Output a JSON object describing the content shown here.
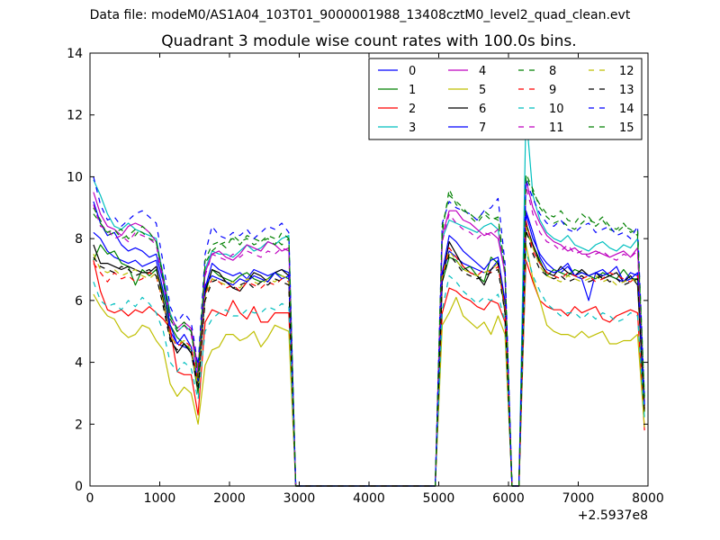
{
  "figure": {
    "suptitle": "Data file: modeM0/AS1A04_103T01_9000001988_13408cztM0_level2_quad_clean.evt"
  },
  "chart_data": {
    "type": "line",
    "title": "Quadrant 3 module wise count rates with 100.0s bins.",
    "xlabel": "",
    "ylabel": "",
    "xlim": [
      0,
      8000
    ],
    "ylim": [
      0,
      14
    ],
    "x_offset_label": "+2.5937e8",
    "xticks": [
      0,
      1000,
      2000,
      3000,
      4000,
      5000,
      6000,
      7000,
      8000
    ],
    "xtick_labels": [
      "0",
      "1000",
      "2000",
      "3000",
      "4000",
      "5000",
      "6000",
      "7000",
      "8000"
    ],
    "yticks": [
      0,
      2,
      4,
      6,
      8,
      10,
      12,
      14
    ],
    "ytick_labels": [
      "0",
      "2",
      "4",
      "6",
      "8",
      "10",
      "12",
      "14"
    ],
    "grid": false,
    "legend": {
      "placement": "top-right",
      "columns": 4
    },
    "x": [
      50,
      150,
      250,
      350,
      450,
      550,
      650,
      750,
      850,
      950,
      1050,
      1150,
      1250,
      1350,
      1450,
      1550,
      1650,
      1750,
      1850,
      1950,
      2050,
      2150,
      2250,
      2350,
      2450,
      2550,
      2650,
      2750,
      2850,
      2950,
      3050,
      4950,
      5050,
      5150,
      5250,
      5350,
      5450,
      5550,
      5650,
      5750,
      5850,
      5950,
      6050,
      6150,
      6250,
      6350,
      6450,
      6550,
      6650,
      6750,
      6850,
      6950,
      7050,
      7150,
      7250,
      7350,
      7450,
      7550,
      7650,
      7750,
      7850,
      7950
    ],
    "series": [
      {
        "name": "0",
        "color": "#0000ff",
        "dash": "solid",
        "values": [
          8.2,
          8.0,
          7.6,
          7.4,
          7.3,
          7.2,
          7.3,
          7.1,
          7.2,
          7.3,
          6.3,
          5.0,
          4.6,
          4.5,
          4.4,
          3.3,
          6.4,
          7.2,
          7.0,
          6.9,
          6.8,
          6.9,
          6.7,
          7.0,
          6.9,
          6.8,
          6.9,
          7.0,
          6.9,
          0,
          0,
          0,
          6.8,
          7.6,
          7.4,
          7.2,
          7.1,
          7.0,
          6.9,
          7.0,
          7.3,
          5.8,
          0,
          0,
          8.8,
          8.0,
          7.5,
          7.2,
          7.0,
          6.9,
          7.1,
          6.8,
          6.7,
          6.0,
          6.9,
          7.0,
          6.8,
          6.7,
          6.6,
          6.9,
          6.8,
          2.6
        ]
      },
      {
        "name": "1",
        "color": "#008000",
        "dash": "solid",
        "values": [
          7.3,
          7.8,
          7.5,
          7.6,
          7.2,
          7.1,
          6.5,
          7.0,
          6.8,
          7.0,
          6.2,
          5.2,
          4.8,
          4.6,
          4.4,
          3.0,
          6.2,
          7.0,
          6.8,
          6.7,
          6.6,
          6.8,
          6.9,
          6.7,
          6.6,
          6.7,
          6.9,
          6.8,
          6.7,
          0,
          0,
          0,
          6.6,
          7.4,
          7.3,
          7.0,
          7.1,
          6.8,
          6.6,
          7.4,
          7.2,
          5.6,
          0,
          0,
          8.2,
          7.8,
          7.3,
          6.8,
          7.0,
          6.9,
          6.8,
          7.0,
          6.9,
          6.8,
          6.7,
          6.9,
          6.8,
          6.7,
          7.0,
          6.7,
          6.7,
          2.4
        ]
      },
      {
        "name": "2",
        "color": "#ff0000",
        "dash": "solid",
        "values": [
          7.3,
          6.3,
          5.7,
          5.6,
          5.7,
          5.5,
          5.7,
          5.6,
          5.8,
          5.6,
          5.4,
          5.1,
          3.7,
          3.6,
          3.6,
          2.3,
          5.3,
          5.7,
          5.6,
          5.5,
          6.0,
          5.6,
          5.4,
          5.8,
          5.3,
          5.3,
          5.6,
          5.6,
          5.6,
          0,
          0,
          0,
          5.6,
          6.4,
          6.3,
          6.1,
          6.0,
          5.8,
          5.7,
          6.0,
          5.9,
          5.3,
          0,
          0,
          7.3,
          6.6,
          6.0,
          5.8,
          5.7,
          5.7,
          5.5,
          5.8,
          5.6,
          5.7,
          5.8,
          5.4,
          5.3,
          5.5,
          5.6,
          5.7,
          5.6,
          1.8
        ]
      },
      {
        "name": "3",
        "color": "#00bfbf",
        "dash": "solid",
        "values": [
          9.9,
          9.4,
          8.8,
          8.4,
          8.3,
          8.5,
          8.3,
          8.2,
          8.1,
          8.0,
          6.8,
          5.6,
          5.0,
          5.2,
          5.0,
          3.7,
          7.0,
          7.6,
          7.5,
          7.5,
          7.4,
          7.6,
          7.8,
          7.6,
          7.7,
          7.9,
          7.8,
          8.0,
          8.1,
          0,
          0,
          0,
          8.0,
          8.6,
          8.5,
          8.4,
          8.3,
          8.2,
          8.4,
          8.5,
          8.3,
          6.8,
          0,
          0,
          12.1,
          9.4,
          8.6,
          8.2,
          8.0,
          7.9,
          8.1,
          7.8,
          7.7,
          7.6,
          7.8,
          7.9,
          7.7,
          7.6,
          7.8,
          7.7,
          8.0,
          2.6
        ]
      },
      {
        "name": "4",
        "color": "#bf00bf",
        "dash": "solid",
        "values": [
          9.5,
          8.8,
          8.4,
          8.3,
          8.1,
          8.4,
          8.5,
          8.4,
          8.2,
          7.9,
          6.7,
          5.5,
          5.1,
          5.3,
          5.1,
          3.8,
          6.9,
          7.5,
          7.6,
          7.4,
          7.3,
          7.5,
          7.8,
          7.7,
          7.6,
          7.9,
          7.8,
          7.6,
          7.7,
          0,
          0,
          0,
          8.1,
          8.9,
          8.9,
          8.6,
          8.5,
          8.3,
          8.1,
          8.2,
          8.0,
          6.9,
          0,
          0,
          9.9,
          9.0,
          8.5,
          8.1,
          7.9,
          7.8,
          7.6,
          7.7,
          7.5,
          7.5,
          7.6,
          7.5,
          7.4,
          7.5,
          7.6,
          7.4,
          7.7,
          2.7
        ]
      },
      {
        "name": "5",
        "color": "#bfbf00",
        "dash": "solid",
        "values": [
          6.2,
          5.8,
          5.5,
          5.4,
          5.0,
          4.8,
          4.9,
          5.2,
          5.1,
          4.7,
          4.4,
          3.3,
          2.9,
          3.2,
          3.0,
          2.0,
          3.9,
          4.4,
          4.5,
          4.9,
          4.9,
          4.7,
          4.8,
          5.0,
          4.5,
          4.8,
          5.2,
          5.1,
          5.0,
          0,
          0,
          0,
          5.2,
          5.6,
          6.1,
          5.5,
          5.3,
          5.1,
          5.3,
          4.9,
          5.5,
          4.9,
          0,
          0,
          7.8,
          6.7,
          6.0,
          5.2,
          5.0,
          4.9,
          4.9,
          4.8,
          5.0,
          4.8,
          4.9,
          5.0,
          4.6,
          4.6,
          4.7,
          4.7,
          4.9,
          1.9
        ]
      },
      {
        "name": "6",
        "color": "#000000",
        "dash": "solid",
        "values": [
          7.8,
          7.2,
          7.2,
          7.1,
          7.0,
          7.1,
          7.0,
          6.9,
          6.9,
          7.1,
          6.0,
          4.8,
          4.3,
          4.6,
          4.3,
          3.3,
          6.3,
          7.0,
          6.9,
          6.6,
          6.4,
          6.3,
          6.6,
          6.9,
          6.8,
          6.6,
          6.9,
          7.0,
          6.8,
          0,
          0,
          0,
          6.7,
          7.9,
          7.5,
          7.1,
          6.9,
          6.8,
          6.5,
          7.0,
          7.2,
          5.9,
          0,
          0,
          8.5,
          7.8,
          7.2,
          6.9,
          6.8,
          7.1,
          6.9,
          6.8,
          7.0,
          6.8,
          6.9,
          6.7,
          6.8,
          6.9,
          6.6,
          6.8,
          6.5,
          2.5
        ]
      },
      {
        "name": "7",
        "color": "#0000ff",
        "dash": "solid",
        "values": [
          9.2,
          8.5,
          8.1,
          8.2,
          7.8,
          7.6,
          7.7,
          7.6,
          7.4,
          7.5,
          6.6,
          5.2,
          4.6,
          4.9,
          4.5,
          3.4,
          6.5,
          6.8,
          6.7,
          6.6,
          6.5,
          6.7,
          6.6,
          6.8,
          6.7,
          6.6,
          6.9,
          6.7,
          6.8,
          0,
          0,
          0,
          6.9,
          8.1,
          7.9,
          7.6,
          7.4,
          7.2,
          7.0,
          7.3,
          7.4,
          6.0,
          0,
          0,
          8.9,
          8.2,
          7.4,
          7.0,
          6.9,
          7.0,
          7.2,
          6.8,
          6.9,
          6.8,
          6.9,
          6.8,
          6.9,
          7.1,
          6.6,
          6.7,
          6.9,
          2.6
        ]
      },
      {
        "name": "8",
        "color": "#008000",
        "dash": "dashed",
        "values": [
          9.0,
          8.6,
          8.1,
          8.2,
          8.3,
          8.0,
          8.1,
          8.4,
          8.2,
          7.9,
          6.7,
          5.5,
          5.1,
          5.3,
          5.0,
          3.6,
          7.2,
          7.6,
          7.8,
          7.9,
          8.0,
          7.8,
          8.1,
          8.0,
          7.9,
          8.0,
          7.8,
          8.2,
          8.0,
          0,
          0,
          0,
          8.2,
          9.6,
          9.1,
          8.9,
          8.8,
          8.6,
          8.9,
          8.7,
          8.6,
          7.0,
          0,
          0,
          10.1,
          9.6,
          9.0,
          8.7,
          8.5,
          8.6,
          8.4,
          8.3,
          8.5,
          8.7,
          8.4,
          8.6,
          8.3,
          8.2,
          8.4,
          8.3,
          8.1,
          2.9
        ]
      },
      {
        "name": "9",
        "color": "#ff0000",
        "dash": "dashed",
        "values": [
          7.2,
          6.9,
          6.6,
          6.9,
          6.7,
          6.8,
          6.6,
          6.7,
          6.9,
          6.8,
          5.9,
          4.9,
          4.5,
          4.7,
          4.5,
          3.4,
          6.2,
          6.7,
          6.6,
          6.4,
          6.5,
          6.3,
          6.6,
          6.5,
          6.4,
          6.6,
          6.5,
          6.7,
          6.6,
          0,
          0,
          0,
          6.8,
          7.7,
          7.4,
          7.1,
          6.9,
          6.8,
          7.0,
          6.9,
          7.1,
          5.8,
          0,
          0,
          8.6,
          7.6,
          7.2,
          6.9,
          6.8,
          6.7,
          6.9,
          6.8,
          6.7,
          6.8,
          6.6,
          6.7,
          6.9,
          6.8,
          6.7,
          6.6,
          6.8,
          2.5
        ]
      },
      {
        "name": "10",
        "color": "#00bfbf",
        "dash": "dashed",
        "values": [
          6.6,
          6.0,
          5.8,
          5.9,
          5.7,
          6.0,
          5.8,
          6.1,
          5.9,
          5.6,
          5.0,
          4.0,
          3.7,
          4.0,
          3.8,
          2.8,
          5.0,
          5.4,
          5.6,
          5.7,
          5.5,
          5.5,
          5.7,
          5.6,
          5.6,
          5.8,
          5.7,
          5.9,
          5.8,
          0,
          0,
          0,
          5.7,
          6.8,
          6.6,
          6.3,
          6.1,
          5.9,
          6.1,
          6.0,
          6.2,
          5.3,
          0,
          0,
          7.6,
          6.8,
          6.3,
          5.9,
          5.7,
          5.5,
          5.6,
          5.6,
          5.4,
          5.6,
          5.4,
          5.6,
          5.5,
          5.3,
          5.4,
          5.6,
          5.5,
          2.2
        ]
      },
      {
        "name": "11",
        "color": "#bf00bf",
        "dash": "dashed",
        "values": [
          9.1,
          8.4,
          8.3,
          8.0,
          8.1,
          7.9,
          8.2,
          8.1,
          8.0,
          7.8,
          6.6,
          5.4,
          5.0,
          5.2,
          4.9,
          3.6,
          6.8,
          7.5,
          7.4,
          7.3,
          7.5,
          7.4,
          7.6,
          7.5,
          7.4,
          7.6,
          7.5,
          7.7,
          7.6,
          0,
          0,
          0,
          7.9,
          8.8,
          8.5,
          8.3,
          8.2,
          8.0,
          8.2,
          8.1,
          8.3,
          6.8,
          0,
          0,
          9.7,
          8.8,
          8.2,
          7.9,
          7.8,
          7.6,
          7.8,
          7.5,
          7.6,
          7.4,
          7.5,
          7.6,
          7.4,
          7.3,
          7.5,
          7.4,
          7.6,
          2.6
        ]
      },
      {
        "name": "12",
        "color": "#bfbf00",
        "dash": "dashed",
        "values": [
          7.5,
          7.0,
          6.9,
          7.0,
          6.8,
          6.9,
          7.0,
          6.8,
          6.7,
          6.9,
          5.9,
          4.8,
          4.6,
          4.7,
          4.4,
          3.2,
          6.1,
          6.7,
          6.6,
          6.5,
          6.6,
          6.4,
          6.7,
          6.6,
          6.5,
          6.7,
          6.6,
          6.8,
          6.7,
          0,
          0,
          0,
          6.7,
          7.6,
          7.3,
          7.0,
          6.9,
          6.8,
          6.9,
          7.0,
          7.2,
          5.7,
          0,
          0,
          8.4,
          7.7,
          7.1,
          6.8,
          6.7,
          6.6,
          6.8,
          6.7,
          6.6,
          6.7,
          6.8,
          6.6,
          6.7,
          6.5,
          6.6,
          6.7,
          6.6,
          2.4
        ]
      },
      {
        "name": "13",
        "color": "#000000",
        "dash": "dashed",
        "values": [
          7.4,
          7.1,
          7.0,
          6.9,
          7.1,
          7.0,
          6.8,
          6.9,
          7.0,
          6.8,
          5.8,
          4.7,
          4.4,
          4.6,
          4.3,
          3.1,
          6.0,
          6.6,
          6.7,
          6.6,
          6.4,
          6.5,
          6.6,
          6.4,
          6.6,
          6.5,
          6.7,
          6.6,
          6.5,
          0,
          0,
          0,
          6.6,
          7.5,
          7.2,
          6.9,
          6.8,
          6.7,
          6.8,
          6.9,
          7.0,
          5.6,
          0,
          0,
          8.3,
          7.5,
          7.0,
          6.8,
          6.7,
          6.8,
          6.6,
          6.7,
          6.8,
          6.6,
          6.7,
          6.8,
          6.6,
          6.7,
          6.5,
          6.6,
          6.7,
          2.3
        ]
      },
      {
        "name": "14",
        "color": "#0000ff",
        "dash": "dashed",
        "values": [
          10.0,
          9.1,
          8.6,
          8.7,
          8.4,
          8.6,
          8.8,
          8.9,
          8.7,
          8.5,
          7.2,
          5.8,
          5.3,
          5.6,
          5.3,
          3.9,
          7.5,
          8.4,
          8.1,
          8.0,
          8.2,
          8.1,
          8.3,
          8.0,
          8.2,
          8.4,
          8.3,
          8.5,
          8.2,
          0,
          0,
          0,
          8.5,
          9.2,
          9.0,
          8.9,
          8.8,
          8.6,
          8.9,
          9.0,
          9.3,
          7.2,
          0,
          0,
          9.9,
          9.3,
          8.8,
          8.5,
          8.4,
          8.6,
          8.3,
          8.2,
          8.4,
          8.5,
          8.2,
          8.3,
          8.4,
          8.1,
          8.2,
          8.0,
          8.4,
          2.9
        ]
      },
      {
        "name": "15",
        "color": "#008000",
        "dash": "dashed",
        "values": [
          8.8,
          8.5,
          8.2,
          8.3,
          8.0,
          8.1,
          8.3,
          8.2,
          8.0,
          7.9,
          6.8,
          5.4,
          5.0,
          5.2,
          5.0,
          3.5,
          7.3,
          7.8,
          7.9,
          7.7,
          8.1,
          7.9,
          8.0,
          7.8,
          7.9,
          8.1,
          8.0,
          7.8,
          8.0,
          0,
          0,
          0,
          8.4,
          9.4,
          9.2,
          9.0,
          8.7,
          8.5,
          8.8,
          8.6,
          8.7,
          7.0,
          0,
          0,
          10.0,
          9.5,
          9.1,
          8.8,
          8.7,
          8.9,
          8.6,
          8.5,
          8.8,
          8.6,
          8.5,
          8.7,
          8.4,
          8.3,
          8.5,
          8.2,
          8.3,
          2.8
        ]
      }
    ]
  }
}
